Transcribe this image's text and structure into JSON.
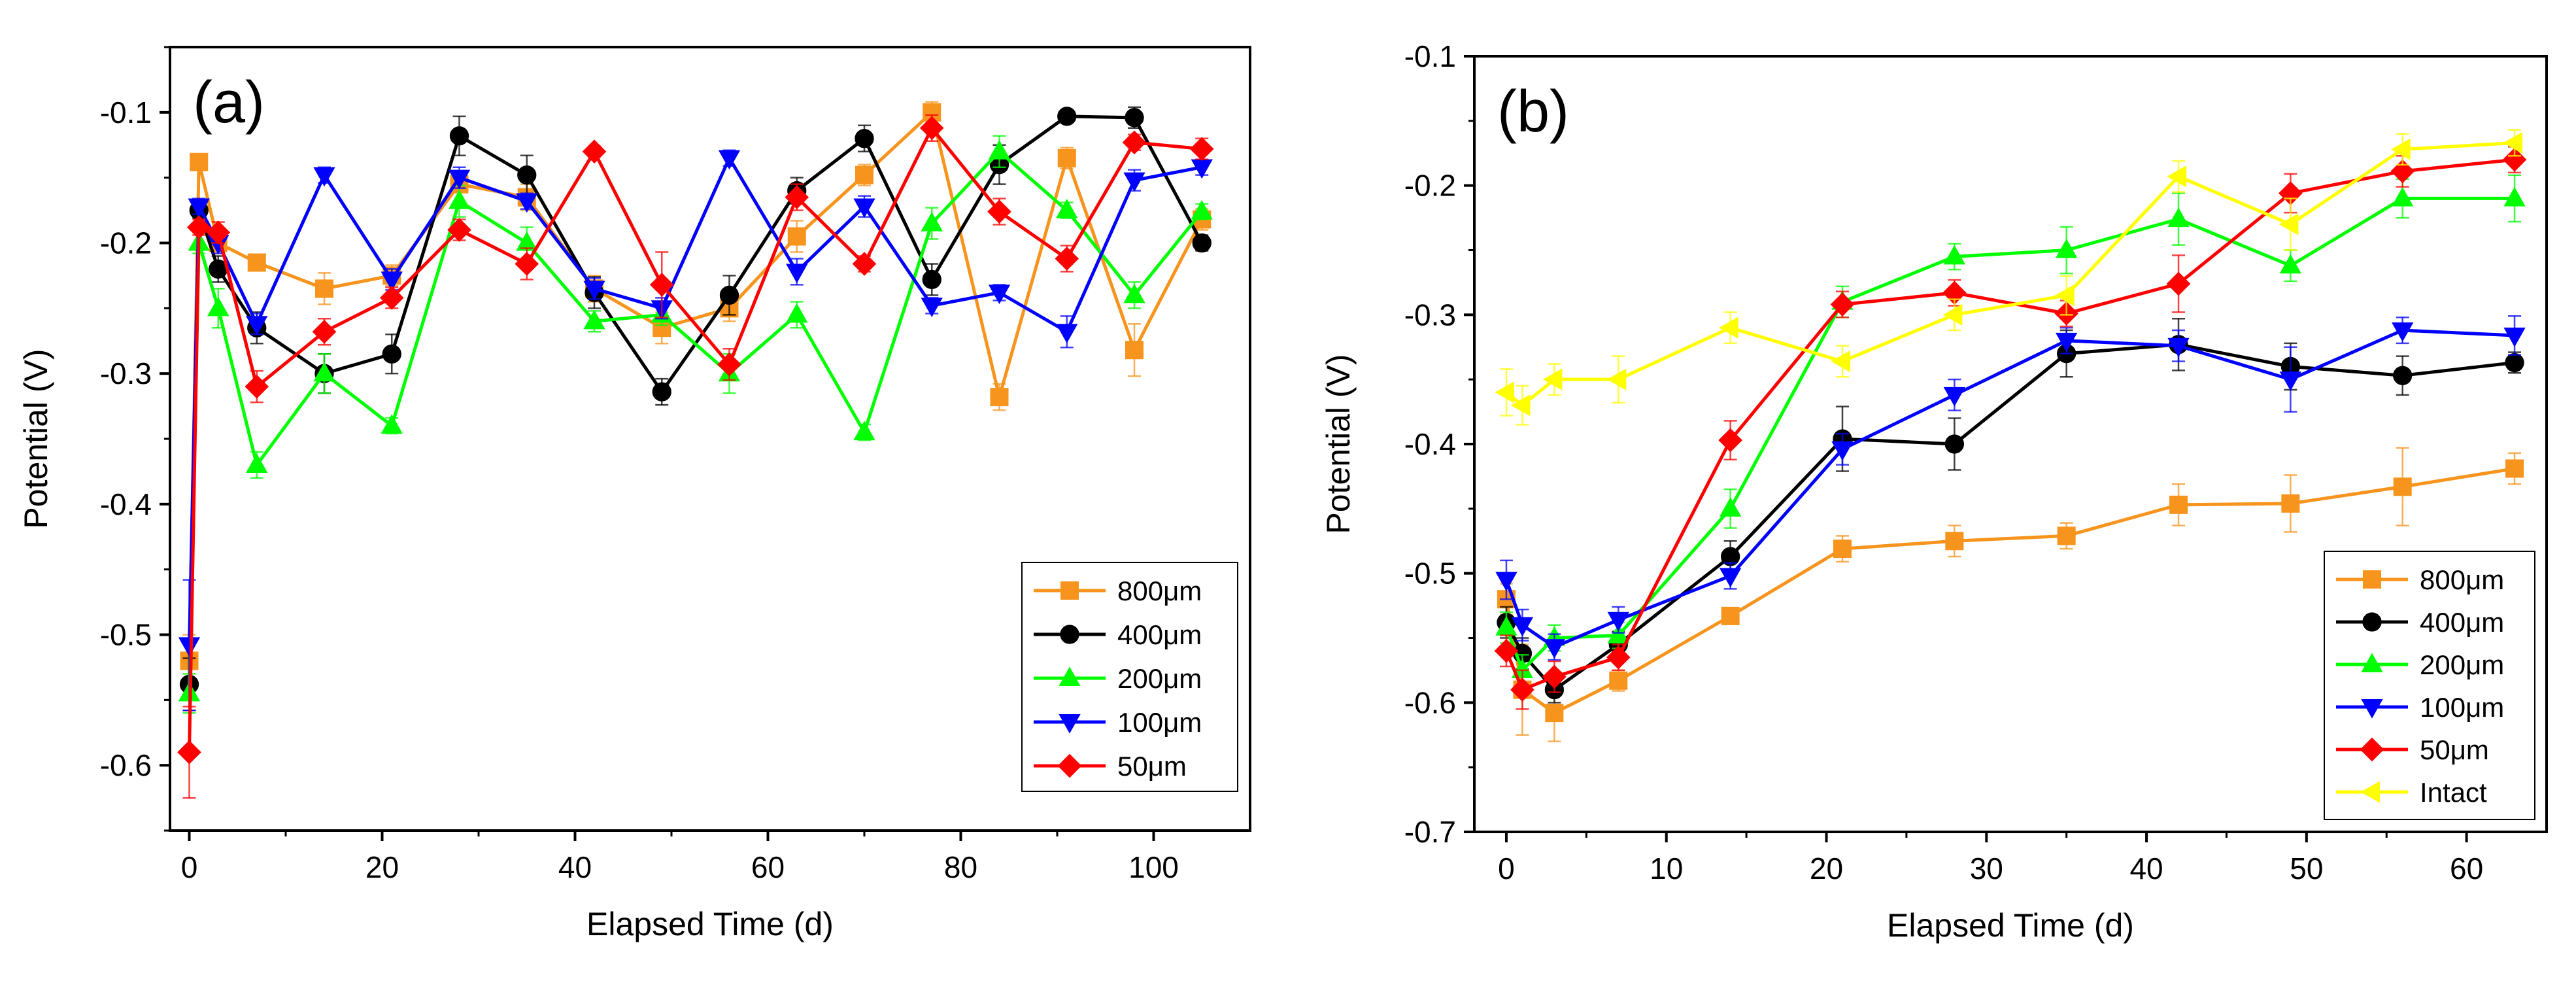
{
  "chart_data": [
    {
      "type": "line",
      "panel_label": "(a)",
      "xlabel": "Elapsed Time (d)",
      "ylabel": "Potential (V)",
      "xlim": [
        -2,
        110
      ],
      "ylim": [
        -0.65,
        -0.05
      ],
      "xticks": [
        0,
        20,
        40,
        60,
        80,
        100
      ],
      "yticks": [
        -0.6,
        -0.5,
        -0.4,
        -0.3,
        -0.2,
        -0.1
      ],
      "legend_position": "bottom-right",
      "series": [
        {
          "name": "800μm",
          "color": "#f7941d",
          "marker": "square",
          "x": [
            0,
            1,
            3,
            7,
            14,
            21,
            28,
            35,
            42,
            49,
            56,
            63,
            70,
            77,
            84,
            91,
            98,
            105
          ],
          "y": [
            -0.52,
            -0.138,
            -0.2,
            -0.215,
            -0.235,
            -0.225,
            -0.155,
            -0.165,
            -0.235,
            -0.265,
            -0.25,
            -0.195,
            -0.148,
            -0.1,
            -0.318,
            -0.135,
            -0.282,
            -0.182
          ],
          "err": [
            0.02,
            0.006,
            0.008,
            0.006,
            0.012,
            0.008,
            0.006,
            0.01,
            0.01,
            0.012,
            0.01,
            0.012,
            0.008,
            0.008,
            0.01,
            0.008,
            0.02,
            0.008
          ]
        },
        {
          "name": "400μm",
          "color": "#000000",
          "marker": "circle",
          "x": [
            0,
            1,
            3,
            7,
            14,
            21,
            28,
            35,
            42,
            49,
            56,
            63,
            70,
            77,
            84,
            91,
            98,
            105
          ],
          "y": [
            -0.538,
            -0.175,
            -0.22,
            -0.265,
            -0.3,
            -0.285,
            -0.118,
            -0.148,
            -0.238,
            -0.314,
            -0.24,
            -0.16,
            -0.12,
            -0.228,
            -0.14,
            -0.103,
            -0.104,
            -0.2
          ],
          "err": [
            0.02,
            0.006,
            0.01,
            0.012,
            0.015,
            0.015,
            0.015,
            0.015,
            0.012,
            0.01,
            0.015,
            0.01,
            0.01,
            0.012,
            0.015,
            0.004,
            0.008,
            0.006
          ]
        },
        {
          "name": "200μm",
          "color": "#00ff00",
          "marker": "triangle-up",
          "x": [
            0,
            1,
            3,
            7,
            14,
            21,
            28,
            35,
            42,
            49,
            56,
            63,
            70,
            77,
            84,
            91,
            98,
            105
          ],
          "y": [
            -0.545,
            -0.2,
            -0.25,
            -0.37,
            -0.3,
            -0.34,
            -0.168,
            -0.2,
            -0.26,
            -0.255,
            -0.3,
            -0.255,
            -0.345,
            -0.185,
            -0.13,
            -0.175,
            -0.24,
            -0.176
          ],
          "err": [
            0.015,
            0.008,
            0.015,
            0.01,
            0.015,
            0.006,
            0.012,
            0.012,
            0.008,
            0.008,
            0.015,
            0.01,
            0.006,
            0.012,
            0.012,
            0.006,
            0.01,
            0.006
          ]
        },
        {
          "name": "100μm",
          "color": "#0000ff",
          "marker": "triangle-down",
          "x": [
            0,
            1,
            3,
            7,
            14,
            21,
            28,
            35,
            42,
            49,
            56,
            63,
            70,
            77,
            84,
            91,
            98,
            105
          ],
          "y": [
            -0.508,
            -0.172,
            -0.2,
            -0.262,
            -0.148,
            -0.228,
            -0.15,
            -0.168,
            -0.235,
            -0.25,
            -0.135,
            -0.222,
            -0.172,
            -0.248,
            -0.238,
            -0.268,
            -0.152,
            -0.142
          ],
          "err": [
            0.05,
            0.006,
            0.008,
            0.008,
            0.006,
            0.008,
            0.008,
            0.006,
            0.008,
            0.008,
            0.006,
            0.01,
            0.008,
            0.006,
            0.006,
            0.012,
            0.008,
            0.006
          ]
        },
        {
          "name": "50μm",
          "color": "#ff0000",
          "marker": "diamond",
          "x": [
            0,
            1,
            3,
            7,
            14,
            21,
            28,
            35,
            42,
            49,
            56,
            63,
            70,
            77,
            84,
            91,
            98,
            105
          ],
          "y": [
            -0.59,
            -0.188,
            -0.192,
            -0.31,
            -0.268,
            -0.242,
            -0.19,
            -0.216,
            -0.13,
            -0.232,
            -0.293,
            -0.165,
            -0.216,
            -0.112,
            -0.176,
            -0.212,
            -0.123,
            -0.128
          ],
          "err": [
            0.035,
            0.006,
            0.008,
            0.012,
            0.01,
            0.008,
            0.008,
            0.012,
            0.004,
            0.025,
            0.012,
            0.01,
            0.006,
            0.01,
            0.01,
            0.01,
            0.006,
            0.008
          ]
        }
      ]
    },
    {
      "type": "line",
      "panel_label": "(b)",
      "xlabel": "Elapsed Time (d)",
      "ylabel": "Potential (V)",
      "xlim": [
        -2,
        65
      ],
      "ylim": [
        -0.7,
        -0.1
      ],
      "xticks": [
        0,
        10,
        20,
        30,
        40,
        50,
        60
      ],
      "yticks": [
        -0.7,
        -0.6,
        -0.5,
        -0.4,
        -0.3,
        -0.2,
        -0.1
      ],
      "legend_position": "bottom-right",
      "series": [
        {
          "name": "800μm",
          "color": "#f7941d",
          "marker": "square",
          "x": [
            0,
            1,
            3,
            7,
            14,
            21,
            28,
            35,
            42,
            49,
            56,
            63
          ],
          "y": [
            -0.52,
            -0.59,
            -0.608,
            -0.583,
            -0.533,
            -0.481,
            -0.475,
            -0.471,
            -0.447,
            -0.446,
            -0.433,
            -0.419
          ],
          "err": [
            0.012,
            0.035,
            0.022,
            0.008,
            0.006,
            0.01,
            0.012,
            0.01,
            0.016,
            0.022,
            0.03,
            0.012
          ]
        },
        {
          "name": "400μm",
          "color": "#000000",
          "marker": "circle",
          "x": [
            0,
            1,
            3,
            7,
            14,
            21,
            28,
            35,
            42,
            49,
            56,
            63
          ],
          "y": [
            -0.538,
            -0.562,
            -0.59,
            -0.555,
            -0.487,
            -0.396,
            -0.4,
            -0.33,
            -0.323,
            -0.34,
            -0.347,
            -0.337
          ],
          "err": [
            0.012,
            0.012,
            0.01,
            0.01,
            0.012,
            0.025,
            0.02,
            0.018,
            0.02,
            0.018,
            0.015,
            0.008
          ]
        },
        {
          "name": "200μm",
          "color": "#00ff00",
          "marker": "triangle-up",
          "x": [
            0,
            1,
            3,
            7,
            14,
            21,
            28,
            35,
            42,
            49,
            56,
            63
          ],
          "y": [
            -0.542,
            -0.575,
            -0.55,
            -0.548,
            -0.45,
            -0.29,
            -0.255,
            -0.25,
            -0.226,
            -0.262,
            -0.21,
            -0.21
          ],
          "err": [
            0.012,
            0.012,
            0.01,
            0.01,
            0.015,
            0.012,
            0.01,
            0.018,
            0.02,
            0.012,
            0.015,
            0.018
          ]
        },
        {
          "name": "100μm",
          "color": "#0000ff",
          "marker": "triangle-down",
          "x": [
            0,
            1,
            3,
            7,
            14,
            21,
            28,
            35,
            42,
            49,
            56,
            63
          ],
          "y": [
            -0.505,
            -0.54,
            -0.557,
            -0.536,
            -0.502,
            -0.404,
            -0.362,
            -0.32,
            -0.324,
            -0.35,
            -0.312,
            -0.316
          ],
          "err": [
            0.015,
            0.012,
            0.01,
            0.01,
            0.01,
            0.012,
            0.012,
            0.01,
            0.012,
            0.025,
            0.01,
            0.015
          ]
        },
        {
          "name": "50μm",
          "color": "#ff0000",
          "marker": "diamond",
          "x": [
            0,
            1,
            3,
            7,
            14,
            21,
            28,
            35,
            42,
            49,
            56,
            63
          ],
          "y": [
            -0.56,
            -0.59,
            -0.58,
            -0.565,
            -0.397,
            -0.292,
            -0.283,
            -0.299,
            -0.276,
            -0.206,
            -0.189,
            -0.18
          ],
          "err": [
            0.012,
            0.015,
            0.012,
            0.01,
            0.015,
            0.01,
            0.01,
            0.01,
            0.022,
            0.015,
            0.012,
            0.01
          ]
        },
        {
          "name": "Intact",
          "color": "#ffff00",
          "marker": "triangle-left",
          "x": [
            0,
            1,
            3,
            7,
            14,
            21,
            28,
            35,
            42,
            49,
            56,
            63
          ],
          "y": [
            -0.36,
            -0.37,
            -0.35,
            -0.35,
            -0.31,
            -0.336,
            -0.3,
            -0.285,
            -0.193,
            -0.23,
            -0.172,
            -0.167
          ],
          "err": [
            0.018,
            0.015,
            0.012,
            0.018,
            0.012,
            0.012,
            0.012,
            0.015,
            0.012,
            0.02,
            0.012,
            0.01
          ]
        }
      ]
    }
  ]
}
